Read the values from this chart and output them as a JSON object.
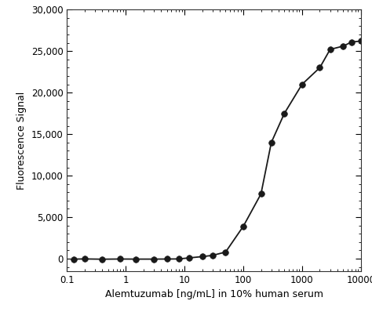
{
  "x": [
    0.13,
    0.2,
    0.4,
    0.8,
    1.5,
    3.0,
    5.0,
    8.0,
    12.0,
    20.0,
    30.0,
    50.0,
    100.0,
    200.0,
    300.0,
    500.0,
    1000.0,
    2000.0,
    3000.0,
    5000.0,
    7000.0,
    10000.0
  ],
  "y": [
    -50,
    -30,
    -60,
    -40,
    -50,
    -50,
    -40,
    -30,
    100,
    250,
    400,
    800,
    3900,
    7800,
    14000,
    17500,
    21000,
    23000,
    25200,
    25600,
    26100,
    26200
  ],
  "xlabel": "Alemtuzumab [ng/mL] in 10% human serum",
  "ylabel": "Fluorescence Signal",
  "xlim": [
    0.1,
    10000
  ],
  "ylim": [
    -1500,
    30000
  ],
  "yticks": [
    0,
    5000,
    10000,
    15000,
    20000,
    25000,
    30000
  ],
  "ytick_labels": [
    "0",
    "5,000",
    "10,000",
    "15,000",
    "20,000",
    "25,000",
    "30,000"
  ],
  "xticks": [
    0.1,
    1,
    10,
    100,
    1000,
    10000
  ],
  "xtick_labels": [
    "0.1",
    "1",
    "10",
    "100",
    "1000",
    "10000"
  ],
  "line_color": "#1a1a1a",
  "marker_color": "#1a1a1a",
  "background_color": "#ffffff",
  "marker_size": 5.5,
  "line_width": 1.3
}
